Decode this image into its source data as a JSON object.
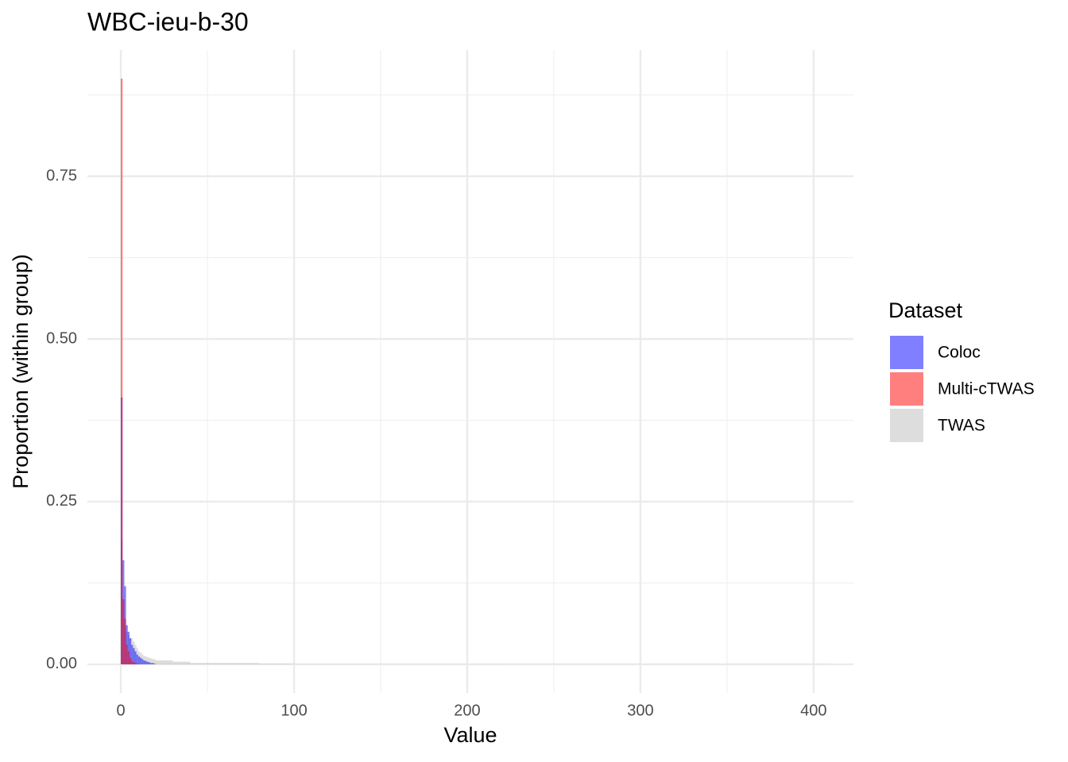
{
  "chart_data": {
    "type": "histogram",
    "title": "WBC-ieu-b-30",
    "x_label": "Value",
    "y_label": "Proportion (within group)",
    "legend_title": "Dataset",
    "legend_position": "right",
    "alpha": 0.5,
    "grid": true,
    "bins": [
      0,
      1,
      2,
      3,
      4,
      5,
      6,
      7,
      8,
      9,
      10,
      11,
      12,
      13,
      14,
      15,
      16,
      17,
      18,
      19,
      20,
      30,
      40,
      60,
      80,
      100,
      150,
      220,
      300,
      410
    ],
    "series": [
      {
        "name": "TWAS",
        "color": "#bbbbbb",
        "values": [
          0.19,
          0.1,
          0.06,
          0.05,
          0.045,
          0.04,
          0.04,
          0.035,
          0.03,
          0.025,
          0.02,
          0.018,
          0.015,
          0.013,
          0.012,
          0.011,
          0.01,
          0.009,
          0.008,
          0.008,
          0.006,
          0.004,
          0.002,
          0.002,
          0.001,
          0.0005,
          0.0003,
          0.0002,
          0.0001
        ]
      },
      {
        "name": "Coloc",
        "color": "#0000ff",
        "values": [
          0.41,
          0.16,
          0.12,
          0.06,
          0.05,
          0.04,
          0.03,
          0.025,
          0.02,
          0.015,
          0.012,
          0.01,
          0.008,
          0.006,
          0.005,
          0.004,
          0.003,
          0.002,
          0.002,
          0.001,
          0,
          0,
          0,
          0,
          0,
          0,
          0,
          0,
          0
        ]
      },
      {
        "name": "Multi-cTWAS",
        "color": "#ff0000",
        "values": [
          0.9,
          0.1,
          0.07,
          0.03,
          0.02,
          0.01,
          0.005,
          0.003,
          0.002,
          0.001,
          0,
          0,
          0,
          0,
          0,
          0,
          0,
          0,
          0,
          0,
          0,
          0,
          0,
          0,
          0,
          0,
          0,
          0,
          0
        ]
      }
    ],
    "legend_order": [
      1,
      2,
      0
    ],
    "xlim": [
      -19.3,
      423
    ],
    "xticks": [
      0,
      100,
      200,
      300,
      400
    ],
    "x_minor_ticks": [
      50,
      150,
      250,
      350
    ],
    "ylim": [
      -0.044,
      0.944
    ],
    "yticks": [
      {
        "value": 0,
        "label": "0.00"
      },
      {
        "value": 0.25,
        "label": "0.25"
      },
      {
        "value": 0.5,
        "label": "0.50"
      },
      {
        "value": 0.75,
        "label": "0.75"
      }
    ],
    "y_minor_ticks": [
      0.125,
      0.375,
      0.625,
      0.875
    ]
  }
}
